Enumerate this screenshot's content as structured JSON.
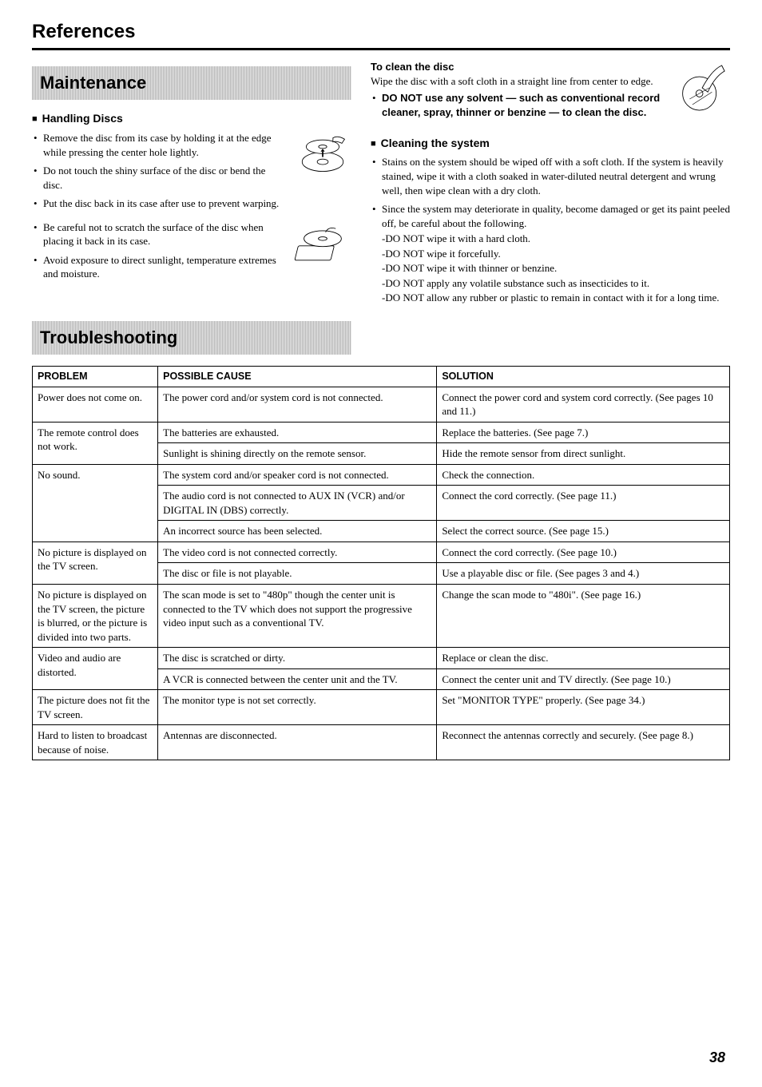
{
  "page": {
    "title": "References",
    "number": "38"
  },
  "maintenance": {
    "heading": "Maintenance",
    "handling": {
      "heading": "Handling Discs",
      "items": [
        "Remove the disc from its case by holding it at the edge while pressing the center hole lightly.",
        "Do not touch the shiny surface of the disc or bend the disc.",
        "Put the disc back in its case after use to prevent warping.",
        "Be careful not to scratch the surface of the disc when placing it back in its case.",
        "Avoid exposure to direct sunlight, temperature extremes and moisture."
      ]
    },
    "clean_disc": {
      "heading": "To clean the disc",
      "body": "Wipe the disc with a soft cloth in a straight line from center to edge.",
      "warn": "DO NOT use any solvent — such as conventional record cleaner, spray, thinner or benzine — to clean the disc."
    },
    "clean_system": {
      "heading": "Cleaning the system",
      "items": [
        "Stains on the system should be wiped off with a soft cloth. If the system is heavily stained, wipe it with a cloth soaked in water-diluted neutral detergent and wrung well, then wipe clean with a dry cloth.",
        "Since the system may deteriorate in quality, become damaged or get its paint peeled off, be careful about the following."
      ],
      "sub": [
        "-DO NOT wipe it with a hard cloth.",
        "-DO NOT wipe it forcefully.",
        "-DO NOT wipe it with thinner or benzine.",
        "-DO NOT apply any volatile substance such as insecticides to it.",
        "-DO NOT allow any rubber or plastic to remain in contact with it for a long time."
      ]
    }
  },
  "troubleshooting": {
    "heading": "Troubleshooting",
    "columns": [
      "PROBLEM",
      "POSSIBLE CAUSE",
      "SOLUTION"
    ],
    "rows": [
      {
        "problem": "Power does not come on.",
        "prowspan": 1,
        "cause": "The power cord and/or system cord is not connected.",
        "solution": "Connect the power cord and system cord correctly. (See pages 10 and 11.)"
      },
      {
        "problem": "The remote control does not work.",
        "prowspan": 2,
        "cause": "The batteries are exhausted.",
        "solution": "Replace the batteries. (See page 7.)"
      },
      {
        "cause": "Sunlight is shining directly on the remote sensor.",
        "solution": "Hide the remote sensor from direct sunlight."
      },
      {
        "problem": "No sound.",
        "prowspan": 3,
        "cause": "The system cord and/or speaker cord is not connected.",
        "solution": "Check the connection."
      },
      {
        "cause": "The audio cord is not connected to AUX IN (VCR) and/or DIGITAL IN (DBS) correctly.",
        "solution": "Connect the cord correctly. (See page 11.)"
      },
      {
        "cause": "An incorrect source has been selected.",
        "solution": "Select the correct source. (See page 15.)"
      },
      {
        "problem": "No picture is displayed on the TV screen.",
        "prowspan": 2,
        "cause": "The video cord is not connected correctly.",
        "solution": "Connect the cord correctly. (See page 10.)"
      },
      {
        "cause": "The disc or file is not playable.",
        "solution": "Use a playable disc or file. (See pages 3 and 4.)"
      },
      {
        "problem": "No picture is displayed on the TV screen, the picture is blurred, or the picture is divided into two parts.",
        "prowspan": 1,
        "cause": "The scan mode is set to \"480p\" though the center unit is connected to the TV which does not support the progressive video input such as a conventional TV.",
        "solution": "Change the scan mode to \"480i\". (See page 16.)"
      },
      {
        "problem": "Video and audio are distorted.",
        "prowspan": 2,
        "cause": "The disc is scratched or dirty.",
        "solution": "Replace or clean the disc."
      },
      {
        "cause": "A VCR is connected between the center unit and the TV.",
        "solution": "Connect the center unit and TV directly. (See page 10.)"
      },
      {
        "problem": "The picture does not fit the TV screen.",
        "prowspan": 1,
        "cause": "The monitor type is not set correctly.",
        "solution": "Set \"MONITOR TYPE\" properly. (See page 34.)"
      },
      {
        "problem": "Hard to listen to broadcast because of noise.",
        "prowspan": 1,
        "cause": "Antennas are disconnected.",
        "solution": "Reconnect the antennas correctly and securely. (See page 8.)"
      }
    ]
  }
}
